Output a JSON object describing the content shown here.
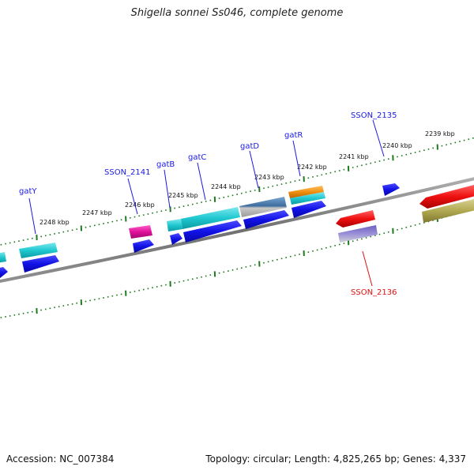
{
  "title": "Shigella sonnei Ss046, complete genome",
  "footer": {
    "accession": "Accession: NC_007384",
    "summary": "Topology: circular; Length: 4,825,265 bp; Genes: 4,337"
  },
  "scale_labels": [
    "2248 kbp",
    "2247 kbp",
    "2246 kbp",
    "2245 kbp",
    "2244 kbp",
    "2243 kbp",
    "2242 kbp",
    "2241 kbp",
    "2240 kbp",
    "2239 kbp"
  ],
  "gene_labels": {
    "gatY": "gatY",
    "ss2141": "SSON_2141",
    "gatB": "gatB",
    "gatC": "gatC",
    "gatD": "gatD",
    "gatR": "gatR",
    "ss2135": "SSON_2135",
    "ss2136": "SSON_2136"
  },
  "colors": {
    "label_blue": "#1a1ae6",
    "label_red": "#e01010",
    "tick_green": "#1f7a1f",
    "backbone": "#808080",
    "cyan": "#20c8d0",
    "blue": "#1010e0",
    "magenta": "#e0109a",
    "steel": "#4a7aa8",
    "orange": "#f09010",
    "red": "#ee1010",
    "purple": "#6a5fc0",
    "olive": "#b0a850"
  }
}
